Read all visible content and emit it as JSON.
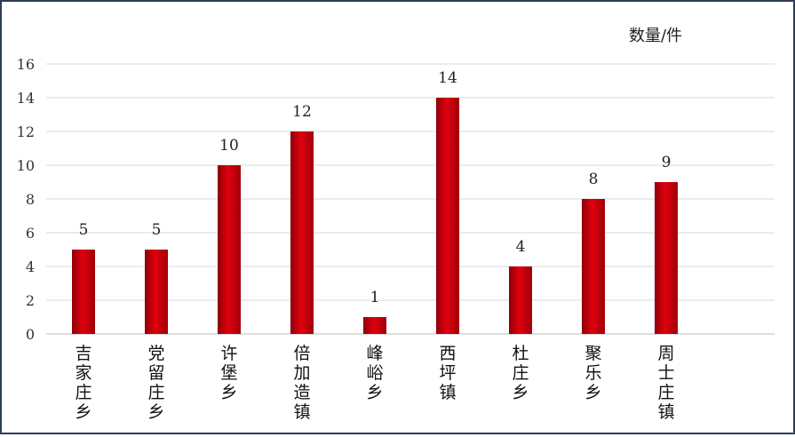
{
  "chart_data": {
    "type": "bar",
    "unit_label": "数量/件",
    "categories": [
      "吉家庄乡",
      "党留庄乡",
      "许堡乡",
      "倍加造镇",
      "峰峪乡",
      "西坪镇",
      "杜庄乡",
      "聚乐乡",
      "周士庄镇"
    ],
    "values": [
      5,
      5,
      10,
      12,
      1,
      14,
      4,
      8,
      9
    ],
    "ylim": [
      0,
      16
    ],
    "yticks": [
      "0",
      "2",
      "4",
      "6",
      "8",
      "10",
      "12",
      "14",
      "16"
    ],
    "grid": true,
    "data_labels": true,
    "bar_color": "#c8000a"
  }
}
